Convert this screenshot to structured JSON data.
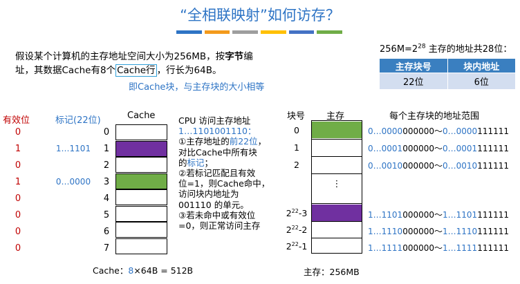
{
  "title": "“全相联映射”如何访存？",
  "title_bar_colors": [
    "#2e74c5",
    "#f39a1c",
    "#9e9e9e",
    "#ffc000",
    "#4472c4",
    "#70ad47"
  ],
  "intro": {
    "line1_a": "假设某个计算机的主存地址空间大小为256MB，按",
    "line1_b": "字节",
    "line1_c": "编",
    "line2_a": "址，其数据Cache有8个",
    "line2_b": "Cache行",
    "line2_c": "，行长为64B。"
  },
  "blue_note": "即Cache块，与主存块的大小相等",
  "addr_note": {
    "a": "256M=2",
    "exp": "28",
    "b": " 主存的地址共28位："
  },
  "addr_table": {
    "headers": [
      "主存块号",
      "块内地址"
    ],
    "values": [
      "22位",
      "6位"
    ]
  },
  "cache": {
    "valid_header": "有效位",
    "tag_header": "标记(22位)",
    "cache_header": "Cache",
    "rows": [
      {
        "index": "0",
        "valid": "0",
        "tag": "",
        "fill": "none"
      },
      {
        "index": "1",
        "valid": "1",
        "tag": "1…1101",
        "fill": "purple"
      },
      {
        "index": "2",
        "valid": "0",
        "tag": "",
        "fill": "none"
      },
      {
        "index": "3",
        "valid": "1",
        "tag": "0…0000",
        "fill": "green"
      },
      {
        "index": "4",
        "valid": "0",
        "tag": "",
        "fill": "none"
      },
      {
        "index": "5",
        "valid": "0",
        "tag": "",
        "fill": "none"
      },
      {
        "index": "6",
        "valid": "0",
        "tag": "",
        "fill": "none"
      },
      {
        "index": "7",
        "valid": "0",
        "tag": "",
        "fill": "none"
      }
    ],
    "footer_a": "Cache：",
    "footer_b": "8",
    "footer_c": "×64B = 512B"
  },
  "cpu_text": {
    "l1": "CPU 访问主存地址",
    "l2": "1…1101001110：",
    "l3a": "①主存地址的",
    "l3b": "前22位",
    "l3c": "，",
    "l4": "对比Cache中所有块",
    "l5a": "的",
    "l5b": "标记",
    "l5c": "；",
    "l6": "②若标记匹配且有效",
    "l7": "位=1，则Cache命中，",
    "l8": "访问块内地址为",
    "l9": "001110 的单元。",
    "l10": "③若未命中或有效位",
    "l11": "=0，则正常访问主存"
  },
  "memory": {
    "block_header": "块号",
    "mem_header": "主存",
    "range_header": "每个主存块的地址范围",
    "ellipsis": "⋮",
    "footer": "主存：256MB",
    "top_rows": [
      {
        "index": "0",
        "fill": "green",
        "r1_pre": "0…0000",
        "r1_post": "000000",
        "r2_pre": "0…0000",
        "r2_post": "111111"
      },
      {
        "index": "1",
        "fill": "none",
        "r1_pre": "0…0001",
        "r1_post": "000000",
        "r2_pre": "0…0001",
        "r2_post": "111111"
      },
      {
        "index": "2",
        "fill": "none",
        "r1_pre": "0…0010",
        "r1_post": "000000",
        "r2_pre": "0…0010",
        "r2_post": "111111"
      }
    ],
    "bottom_rows": [
      {
        "base": "2",
        "exp": "22",
        "suffix": "-3",
        "fill": "purple",
        "r1_pre": "1…1101",
        "r1_post": "000000",
        "r2_pre": "1…1101",
        "r2_post": "111111"
      },
      {
        "base": "2",
        "exp": "22",
        "suffix": "-2",
        "fill": "none",
        "r1_pre": "1…1110",
        "r1_post": "000000",
        "r2_pre": "1…1110",
        "r2_post": "111111"
      },
      {
        "base": "2",
        "exp": "22",
        "suffix": "-1",
        "fill": "none",
        "r1_pre": "1…1111",
        "r1_post": "000000",
        "r2_pre": "1…1111",
        "r2_post": "111111"
      }
    ],
    "tilde": "～"
  }
}
